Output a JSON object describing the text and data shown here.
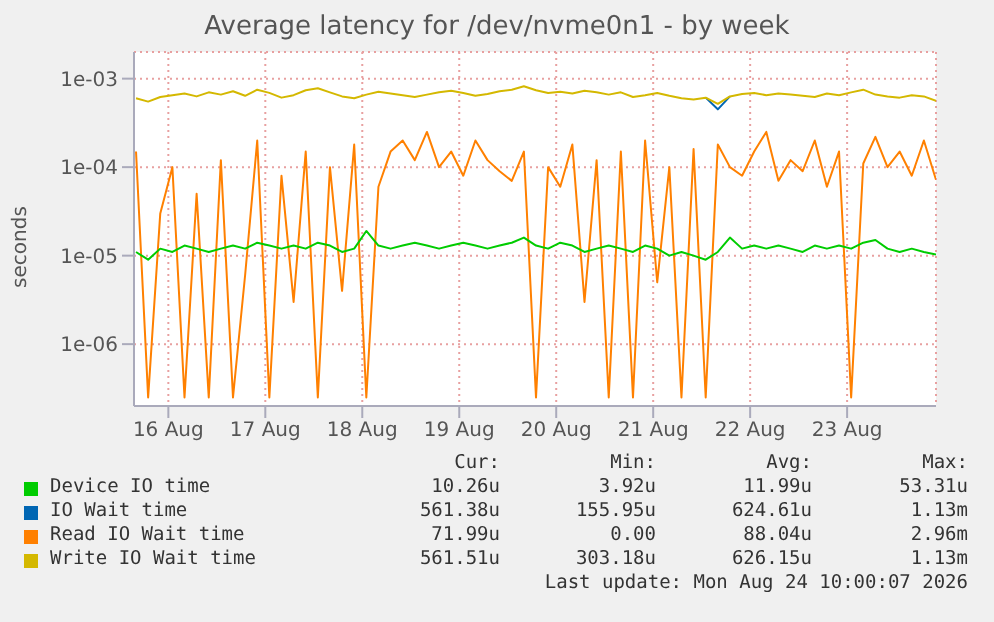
{
  "chart_data": {
    "type": "line",
    "title": "Average latency for /dev/nvme0n1 - by week",
    "ylabel": "seconds",
    "log": true,
    "grid": true,
    "legend": "bottom",
    "marker": "none",
    "line_style": "solid",
    "x": [
      "2026-08-16T04:00",
      "2026-08-16T07:00",
      "2026-08-16T10:00",
      "2026-08-16T13:00",
      "2026-08-16T16:00",
      "2026-08-16T19:00",
      "2026-08-16T22:00",
      "2026-08-17T01:00",
      "2026-08-17T04:00",
      "2026-08-17T07:00",
      "2026-08-17T10:00",
      "2026-08-17T13:00",
      "2026-08-17T16:00",
      "2026-08-17T19:00",
      "2026-08-17T22:00",
      "2026-08-18T01:00",
      "2026-08-18T04:00",
      "2026-08-18T07:00",
      "2026-08-18T10:00",
      "2026-08-18T13:00",
      "2026-08-18T16:00",
      "2026-08-18T19:00",
      "2026-08-18T22:00",
      "2026-08-19T01:00",
      "2026-08-19T04:00",
      "2026-08-19T07:00",
      "2026-08-19T10:00",
      "2026-08-19T13:00",
      "2026-08-19T16:00",
      "2026-08-19T19:00",
      "2026-08-19T22:00",
      "2026-08-20T01:00",
      "2026-08-20T04:00",
      "2026-08-20T07:00",
      "2026-08-20T10:00",
      "2026-08-20T13:00",
      "2026-08-20T16:00",
      "2026-08-20T19:00",
      "2026-08-20T22:00",
      "2026-08-21T01:00",
      "2026-08-21T04:00",
      "2026-08-21T07:00",
      "2026-08-21T10:00",
      "2026-08-21T13:00",
      "2026-08-21T16:00",
      "2026-08-21T19:00",
      "2026-08-21T22:00",
      "2026-08-22T01:00",
      "2026-08-22T04:00",
      "2026-08-22T07:00",
      "2026-08-22T10:00",
      "2026-08-22T13:00",
      "2026-08-22T16:00",
      "2026-08-22T19:00",
      "2026-08-22T22:00",
      "2026-08-23T01:00",
      "2026-08-23T04:00",
      "2026-08-23T07:00",
      "2026-08-23T10:00",
      "2026-08-23T13:00",
      "2026-08-23T16:00",
      "2026-08-23T19:00",
      "2026-08-23T22:00",
      "2026-08-24T01:00",
      "2026-08-24T04:00",
      "2026-08-24T07:00",
      "2026-08-24T10:00"
    ],
    "xlim": [
      "2026-08-16T03:30",
      "2026-08-24T10:00"
    ],
    "xticks": [
      {
        "value": "2026-08-16T12:00",
        "label": "16 Aug"
      },
      {
        "value": "2026-08-17T12:00",
        "label": "17 Aug"
      },
      {
        "value": "2026-08-18T12:00",
        "label": "18 Aug"
      },
      {
        "value": "2026-08-19T12:00",
        "label": "19 Aug"
      },
      {
        "value": "2026-08-20T12:00",
        "label": "20 Aug"
      },
      {
        "value": "2026-08-21T12:00",
        "label": "21 Aug"
      },
      {
        "value": "2026-08-22T12:00",
        "label": "22 Aug"
      },
      {
        "value": "2026-08-23T12:00",
        "label": "23 Aug"
      }
    ],
    "ylim": [
      2e-07,
      0.002
    ],
    "yticks": [
      {
        "value": 1e-06,
        "label": "1e-06"
      },
      {
        "value": 1e-05,
        "label": "1e-05"
      },
      {
        "value": 0.0001,
        "label": "1e-04"
      },
      {
        "value": 0.001,
        "label": "1e-03"
      }
    ],
    "series": [
      {
        "name": "Device IO time",
        "color": "#00cc00",
        "values": [
          1.1e-05,
          9e-06,
          1.2e-05,
          1.1e-05,
          1.3e-05,
          1.2e-05,
          1.1e-05,
          1.2e-05,
          1.3e-05,
          1.2e-05,
          1.4e-05,
          1.3e-05,
          1.2e-05,
          1.3e-05,
          1.2e-05,
          1.4e-05,
          1.3e-05,
          1.1e-05,
          1.2e-05,
          1.9e-05,
          1.3e-05,
          1.2e-05,
          1.3e-05,
          1.4e-05,
          1.3e-05,
          1.2e-05,
          1.3e-05,
          1.4e-05,
          1.3e-05,
          1.2e-05,
          1.3e-05,
          1.4e-05,
          1.6e-05,
          1.3e-05,
          1.2e-05,
          1.4e-05,
          1.3e-05,
          1.1e-05,
          1.2e-05,
          1.3e-05,
          1.2e-05,
          1.1e-05,
          1.3e-05,
          1.2e-05,
          1e-05,
          1.1e-05,
          1e-05,
          9e-06,
          1.1e-05,
          1.6e-05,
          1.2e-05,
          1.3e-05,
          1.2e-05,
          1.3e-05,
          1.2e-05,
          1.1e-05,
          1.3e-05,
          1.2e-05,
          1.3e-05,
          1.2e-05,
          1.4e-05,
          1.5e-05,
          1.2e-05,
          1.1e-05,
          1.2e-05,
          1.1e-05,
          1.03e-05
        ]
      },
      {
        "name": "IO Wait time",
        "color": "#0066b3",
        "values": [
          null,
          null,
          null,
          null,
          null,
          null,
          null,
          null,
          null,
          null,
          null,
          null,
          null,
          null,
          null,
          null,
          null,
          null,
          null,
          null,
          null,
          null,
          null,
          null,
          null,
          null,
          null,
          null,
          null,
          null,
          null,
          null,
          null,
          null,
          null,
          null,
          null,
          null,
          null,
          null,
          null,
          null,
          null,
          null,
          null,
          null,
          null,
          0.00061,
          0.00045,
          0.00063,
          null,
          null,
          null,
          null,
          null,
          null,
          null,
          null,
          null,
          null,
          null,
          null,
          null,
          null,
          null,
          null,
          null
        ]
      },
      {
        "name": "Read IO Wait time",
        "color": "#ff8000",
        "values": [
          0.00015,
          2.5e-07,
          3e-05,
          0.0001,
          2.5e-07,
          5e-05,
          2.5e-07,
          0.00012,
          2.5e-07,
          6e-06,
          0.0002,
          2.5e-07,
          8e-05,
          3e-06,
          0.00015,
          2.5e-07,
          0.0001,
          4e-06,
          0.00018,
          2.5e-07,
          6e-05,
          0.00015,
          0.0002,
          0.00012,
          0.00025,
          0.0001,
          0.00015,
          8e-05,
          0.0002,
          0.00012,
          9e-05,
          7e-05,
          0.00015,
          2.5e-07,
          0.0001,
          6e-05,
          0.00018,
          3e-06,
          0.00012,
          2.5e-07,
          0.00015,
          2.5e-07,
          0.0002,
          5e-06,
          0.0001,
          2.5e-07,
          0.00016,
          2.5e-07,
          0.00018,
          0.0001,
          8e-05,
          0.00015,
          0.00025,
          7e-05,
          0.00012,
          9e-05,
          0.0002,
          6e-05,
          0.00015,
          2.5e-07,
          0.00011,
          0.00022,
          0.0001,
          0.00015,
          8e-05,
          0.0002,
          7.2e-05
        ]
      },
      {
        "name": "Write IO Wait time",
        "color": "#d4b800",
        "values": [
          0.0006,
          0.00055,
          0.00062,
          0.00065,
          0.00068,
          0.00063,
          0.0007,
          0.00066,
          0.00072,
          0.00064,
          0.00075,
          0.00069,
          0.00061,
          0.00065,
          0.00074,
          0.00078,
          0.0007,
          0.00063,
          0.0006,
          0.00066,
          0.00071,
          0.00068,
          0.00065,
          0.00062,
          0.00066,
          0.0007,
          0.00073,
          0.00069,
          0.00064,
          0.00067,
          0.00072,
          0.00075,
          0.00082,
          0.00074,
          0.00069,
          0.00071,
          0.00068,
          0.00073,
          0.0007,
          0.00066,
          0.0007,
          0.00062,
          0.00065,
          0.00069,
          0.00064,
          0.0006,
          0.00058,
          0.00061,
          0.00052,
          0.00063,
          0.00067,
          0.00069,
          0.00065,
          0.00068,
          0.00066,
          0.00064,
          0.00062,
          0.00068,
          0.00065,
          0.0007,
          0.00075,
          0.00066,
          0.00063,
          0.00061,
          0.00065,
          0.00063,
          0.00056
        ]
      }
    ],
    "annotations": [
      "Cur:",
      "Min:",
      "Avg:",
      "Max:",
      "10.26u",
      "3.92u",
      "11.99u",
      "53.31u",
      "561.38u",
      "155.95u",
      "624.61u",
      "1.13m",
      "71.99u",
      "0.00",
      "88.04u",
      "2.96m",
      "561.51u",
      "303.18u",
      "626.15u",
      "1.13m",
      "Last update: Mon Aug 24 10:00:07 2026"
    ]
  }
}
